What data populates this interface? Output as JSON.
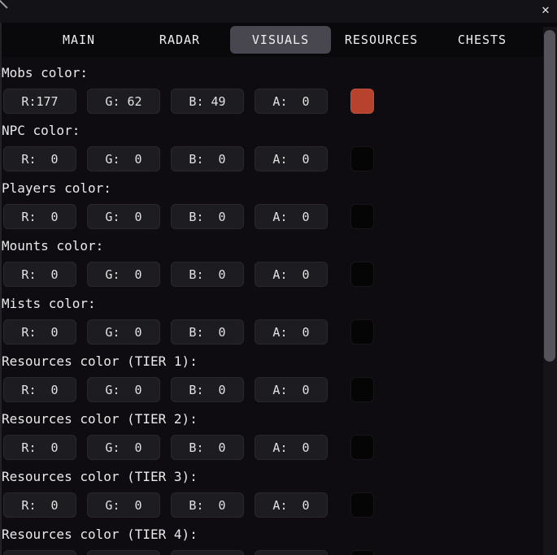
{
  "window": {
    "close_icon": "✕",
    "active_tab": "VISUALS"
  },
  "tabs": [
    {
      "label": "MAIN"
    },
    {
      "label": "RADAR"
    },
    {
      "label": "VISUALS"
    },
    {
      "label": "RESOURCES"
    },
    {
      "label": "CHESTS"
    }
  ],
  "colors": {
    "mobs_swatch": "#b7432f",
    "empty_swatch": "#050505",
    "active_tab_bg": "#48464f"
  },
  "sections": [
    {
      "label": "Mobs color:",
      "r": "R:177",
      "g": "G: 62",
      "b": "B: 49",
      "a": "A:  0",
      "swatch": "#b7432f"
    },
    {
      "label": "NPC color:",
      "r": "R:  0",
      "g": "G:  0",
      "b": "B:  0",
      "a": "A:  0",
      "swatch": "#050505"
    },
    {
      "label": "Players color:",
      "r": "R:  0",
      "g": "G:  0",
      "b": "B:  0",
      "a": "A:  0",
      "swatch": "#050505"
    },
    {
      "label": "Mounts color:",
      "r": "R:  0",
      "g": "G:  0",
      "b": "B:  0",
      "a": "A:  0",
      "swatch": "#050505"
    },
    {
      "label": "Mists color:",
      "r": "R:  0",
      "g": "G:  0",
      "b": "B:  0",
      "a": "A:  0",
      "swatch": "#050505"
    },
    {
      "label": "Resources color (TIER 1):",
      "r": "R:  0",
      "g": "G:  0",
      "b": "B:  0",
      "a": "A:  0",
      "swatch": "#050505"
    },
    {
      "label": "Resources color (TIER 2):",
      "r": "R:  0",
      "g": "G:  0",
      "b": "B:  0",
      "a": "A:  0",
      "swatch": "#050505"
    },
    {
      "label": "Resources color (TIER 3):",
      "r": "R:  0",
      "g": "G:  0",
      "b": "B:  0",
      "a": "A:  0",
      "swatch": "#050505"
    },
    {
      "label": "Resources color (TIER 4):",
      "r": "",
      "g": "",
      "b": "",
      "a": "",
      "swatch": "#050505"
    }
  ]
}
